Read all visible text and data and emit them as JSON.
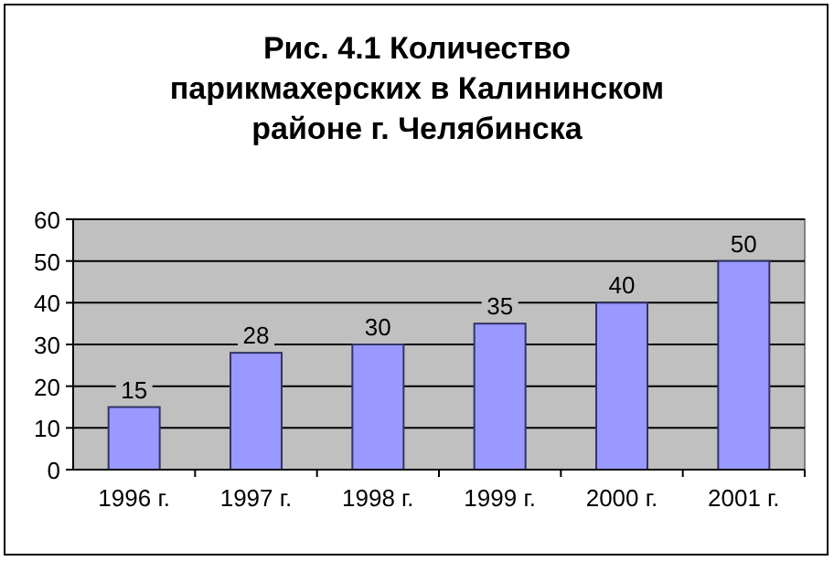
{
  "chart_data": {
    "type": "bar",
    "title": "Рис. 4.1 Количество\nпарикмахерских в Калининском\nрайоне г. Челябинска",
    "categories": [
      "1996 г.",
      "1997 г.",
      "1998 г.",
      "1999 г.",
      "2000 г.",
      "2001 г."
    ],
    "values": [
      15,
      28,
      30,
      35,
      40,
      50
    ],
    "color": "#9999ff",
    "ylim": [
      0,
      60
    ],
    "yticks": [
      0,
      10,
      20,
      30,
      40,
      50,
      60
    ],
    "grid": "y",
    "data_labels": true
  }
}
